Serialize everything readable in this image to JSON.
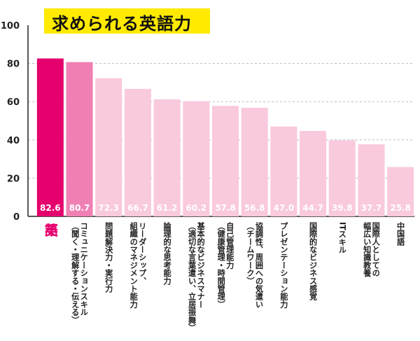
{
  "chart_data": {
    "type": "bar",
    "title": "求められる英語力",
    "ylim": [
      0,
      100
    ],
    "yticks": [
      0,
      20,
      40,
      60,
      80,
      100
    ],
    "grid": true,
    "categories": [
      {
        "lines": [
          "英",
          "語"
        ]
      },
      {
        "lines": [
          "コミュニケーションスキル",
          "（聞く・理解する・伝える）"
        ]
      },
      {
        "lines": [
          "問題解決力・実行力"
        ]
      },
      {
        "lines": [
          "リーダーシップ、",
          "組織のマネジメント能力"
        ]
      },
      {
        "lines": [
          "論理的な思考能力"
        ]
      },
      {
        "lines": [
          "基本的なビジネスマナー",
          "（適切な言葉遣い、立居振舞）"
        ]
      },
      {
        "lines": [
          "自己管理能力",
          "（健康管理・時間管理）"
        ]
      },
      {
        "lines": [
          "協調性、周囲への気遣い",
          "（チームワーク）"
        ]
      },
      {
        "lines": [
          "プレゼンテーション能力"
        ]
      },
      {
        "lines": [
          "国際的なビジネス感覚"
        ]
      },
      {
        "lines": [
          "ITスキル"
        ]
      },
      {
        "lines": [
          "国際人としての",
          "幅広い知識教養"
        ]
      },
      {
        "lines": [
          "中国語"
        ]
      }
    ],
    "values": [
      82.6,
      80.7,
      72.3,
      66.7,
      61.2,
      60.2,
      57.8,
      56.8,
      47.0,
      44.7,
      39.8,
      37.7,
      25.8
    ],
    "value_labels": [
      "82.6",
      "80.7",
      "72.3",
      "66.7",
      "61.2",
      "60.2",
      "57.8",
      "56.8",
      "47.0",
      "44.7",
      "39.8",
      "37.7",
      "25.8"
    ],
    "colors": {
      "highlight": "#e5006e",
      "second": "#f080b4",
      "rest": "#f9c9dd",
      "highlight_label": "#e5006e",
      "axis": "#222222",
      "grid": "#bbbbbb",
      "title_band": "#ffea00"
    }
  }
}
